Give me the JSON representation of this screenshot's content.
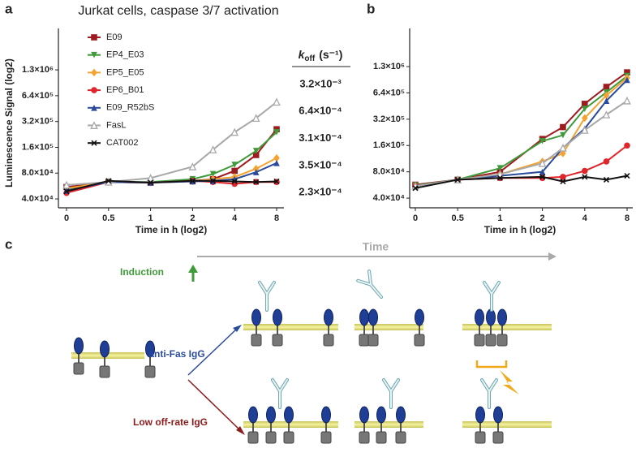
{
  "panel_labels": [
    "a",
    "b",
    "c"
  ],
  "chart_data": [
    {
      "type": "line",
      "title": "Jurkat cells, caspase 3/7 activation",
      "x_label": "Time in h (log2)",
      "y_label": "Luminescence Signal (log2)",
      "x": [
        0,
        0.5,
        1,
        2,
        2.8,
        4,
        5.7,
        8
      ],
      "xscale": "log2",
      "xticks": [
        0,
        0.5,
        1,
        2,
        4,
        8
      ],
      "yscale": "log2",
      "ylim": [
        31500,
        3900000
      ],
      "yticks": [
        {
          "value": 40000,
          "label": "4.0×10⁴"
        },
        {
          "value": 80000,
          "label": "8.0×10⁴"
        },
        {
          "value": 160000,
          "label": "1.6×10⁵"
        },
        {
          "value": 320000,
          "label": "3.2×10⁵"
        },
        {
          "value": 640000,
          "label": "6.4×10⁵"
        },
        {
          "value": 1280000,
          "label": "1.3×10⁶"
        }
      ],
      "legend": "upper left",
      "series": [
        {
          "name": "E09",
          "color": "#9e1b20",
          "marker": "square",
          "values": [
            55000,
            63000,
            62000,
            65000,
            68000,
            85000,
            130000,
            260000
          ]
        },
        {
          "name": "EP4_E03",
          "color": "#3f9a3a",
          "marker": "triangle-down",
          "values": [
            52000,
            63000,
            63000,
            68000,
            78000,
            100000,
            145000,
            240000
          ]
        },
        {
          "name": "EP5_E05",
          "color": "#f5a330",
          "marker": "diamond",
          "values": [
            53000,
            63000,
            62000,
            64000,
            68000,
            72000,
            90000,
            120000
          ]
        },
        {
          "name": "EP6_B01",
          "color": "#e0262a",
          "marker": "circle",
          "values": [
            47000,
            63000,
            62000,
            65000,
            63000,
            60000,
            63000,
            63000
          ]
        },
        {
          "name": "E09_R52bS",
          "color": "#2a4a9c",
          "marker": "triangle-up",
          "values": [
            50000,
            63000,
            62000,
            64000,
            65000,
            68000,
            82000,
            105000
          ]
        },
        {
          "name": "FasL",
          "color": "#a8a8a8",
          "marker": "triangle-open",
          "values": [
            58000,
            63000,
            70000,
            95000,
            150000,
            240000,
            350000,
            540000
          ]
        },
        {
          "name": "CAT002",
          "color": "#111111",
          "marker": "x",
          "values": [
            49000,
            65000,
            62000,
            65000,
            65000,
            64000,
            63000,
            64000
          ]
        }
      ]
    },
    {
      "type": "line",
      "x_label": "Time in h (log2)",
      "x": [
        0,
        0.5,
        1,
        2,
        2.8,
        4,
        5.7,
        8
      ],
      "xscale": "log2",
      "xticks": [
        0,
        0.5,
        1,
        2,
        4,
        8
      ],
      "yscale": "log2",
      "ylim": [
        31000,
        3500000
      ],
      "yticks": [
        {
          "value": 40000,
          "label": "4.0×10⁴"
        },
        {
          "value": 80000,
          "label": "8.0×10⁴"
        },
        {
          "value": 160000,
          "label": "1.6×10⁵"
        },
        {
          "value": 320000,
          "label": "3.2×10⁵"
        },
        {
          "value": 640000,
          "label": "6.4×10⁵"
        },
        {
          "value": 1280000,
          "label": "1.3×10⁶"
        }
      ],
      "series": [
        {
          "color": "#9e1b20",
          "marker": "square",
          "values": [
            57000,
            65000,
            80000,
            190000,
            260000,
            480000,
            750000,
            1100000
          ]
        },
        {
          "color": "#3f9a3a",
          "marker": "triangle-down",
          "values": [
            56000,
            65000,
            88000,
            180000,
            210000,
            420000,
            650000,
            1000000
          ]
        },
        {
          "color": "#f5a330",
          "marker": "diamond",
          "values": [
            55000,
            65000,
            75000,
            105000,
            130000,
            330000,
            600000,
            950000
          ]
        },
        {
          "color": "#e0262a",
          "marker": "circle",
          "values": [
            55000,
            65000,
            68000,
            68000,
            70000,
            82000,
            105000,
            160000
          ]
        },
        {
          "color": "#2a4a9c",
          "marker": "triangle-up",
          "values": [
            55000,
            65000,
            72000,
            80000,
            150000,
            250000,
            520000,
            900000
          ]
        },
        {
          "color": "#a8a8a8",
          "marker": "triangle-open",
          "values": [
            55000,
            65000,
            75000,
            100000,
            150000,
            240000,
            360000,
            520000
          ]
        },
        {
          "color": "#111111",
          "marker": "x",
          "values": [
            52000,
            65000,
            68000,
            70000,
            62000,
            70000,
            65000,
            72000
          ]
        }
      ]
    }
  ],
  "koff": {
    "symbol": "k",
    "subscript": "off",
    "unit": "(s⁻¹)",
    "values": [
      {
        "label": "3.2×10⁻³",
        "color": "#9e1b20"
      },
      {
        "label": "6.4×10⁻⁴",
        "color": "#3f9a3a"
      },
      {
        "label": "3.1×10⁻⁴",
        "color": "#f5a330"
      },
      {
        "label": "3.5×10⁻⁴",
        "color": "#2a4a9c"
      },
      {
        "label": "2.3×10⁻⁴",
        "color": "#e0262a"
      }
    ]
  },
  "diagram": {
    "time": "Time",
    "induction": "Induction",
    "anti_fas": "anti-Fas IgG",
    "low_off_rate": "Low off-rate IgG"
  }
}
